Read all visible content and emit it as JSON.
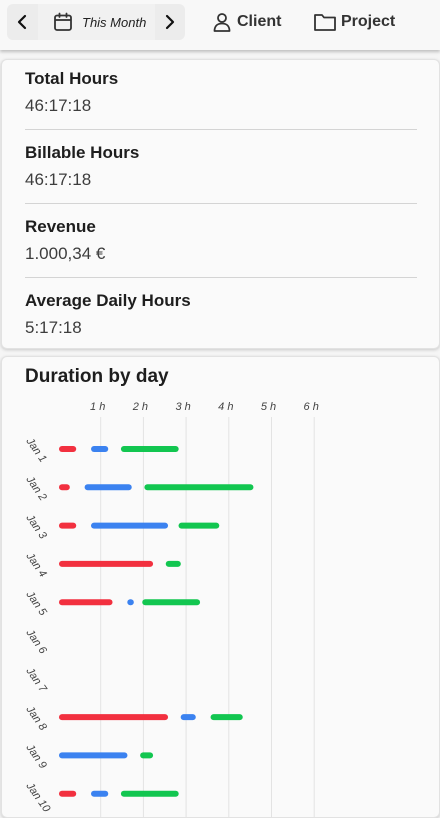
{
  "header": {
    "period_label": "This Month",
    "client_label": "Client",
    "project_label": "Project",
    "icons": [
      "chevron-left-icon",
      "calendar-icon",
      "chevron-right-icon",
      "person-icon",
      "folder-icon"
    ]
  },
  "stats": [
    {
      "title": "Total Hours",
      "value": "46:17:18"
    },
    {
      "title": "Billable Hours",
      "value": "46:17:18"
    },
    {
      "title": "Revenue",
      "value": "1.000,34 €"
    },
    {
      "title": "Average Daily Hours",
      "value": "5:17:18"
    }
  ],
  "chart_title": "Duration by day",
  "chart_data": {
    "type": "bar",
    "orientation": "horizontal",
    "title": "Duration by day",
    "x_ticks": [
      "1 h",
      "2 h",
      "3 h",
      "4 h",
      "5 h",
      "6 h"
    ],
    "xlim": [
      0,
      6.4
    ],
    "grid": true,
    "colors": {
      "red": "#f2303f",
      "blue": "#3b82f0",
      "green": "#12c650"
    },
    "categories": [
      "Jan 1",
      "Jan 2",
      "Jan 3",
      "Jan 4",
      "Jan 5",
      "Jan 6",
      "Jan 7",
      "Jan 8",
      "Jan 9",
      "Jan 10"
    ],
    "rows": [
      [
        {
          "color": "red",
          "start": 0.0,
          "end": 0.45
        },
        {
          "color": "blue",
          "start": 0.75,
          "end": 1.2
        },
        {
          "color": "green",
          "start": 1.45,
          "end": 2.85
        }
      ],
      [
        {
          "color": "red",
          "start": 0.0,
          "end": 0.3
        },
        {
          "color": "blue",
          "start": 0.6,
          "end": 1.75
        },
        {
          "color": "green",
          "start": 2.0,
          "end": 4.6
        }
      ],
      [
        {
          "color": "red",
          "start": 0.0,
          "end": 0.45
        },
        {
          "color": "blue",
          "start": 0.75,
          "end": 2.6
        },
        {
          "color": "green",
          "start": 2.8,
          "end": 3.8
        }
      ],
      [
        {
          "color": "red",
          "start": 0.0,
          "end": 2.25
        },
        {
          "color": "green",
          "start": 2.5,
          "end": 2.9
        }
      ],
      [
        {
          "color": "red",
          "start": 0.0,
          "end": 1.3
        },
        {
          "color": "blue",
          "start": 1.6,
          "end": 1.75
        },
        {
          "color": "green",
          "start": 1.95,
          "end": 3.35
        }
      ],
      [],
      [],
      [
        {
          "color": "red",
          "start": 0.0,
          "end": 2.6
        },
        {
          "color": "blue",
          "start": 2.85,
          "end": 3.25
        },
        {
          "color": "green",
          "start": 3.55,
          "end": 4.35
        }
      ],
      [
        {
          "color": "blue",
          "start": 0.0,
          "end": 1.65
        },
        {
          "color": "green",
          "start": 1.9,
          "end": 2.25
        }
      ],
      [
        {
          "color": "red",
          "start": 0.0,
          "end": 0.45
        },
        {
          "color": "blue",
          "start": 0.75,
          "end": 1.2
        },
        {
          "color": "green",
          "start": 1.45,
          "end": 2.85
        }
      ]
    ]
  }
}
